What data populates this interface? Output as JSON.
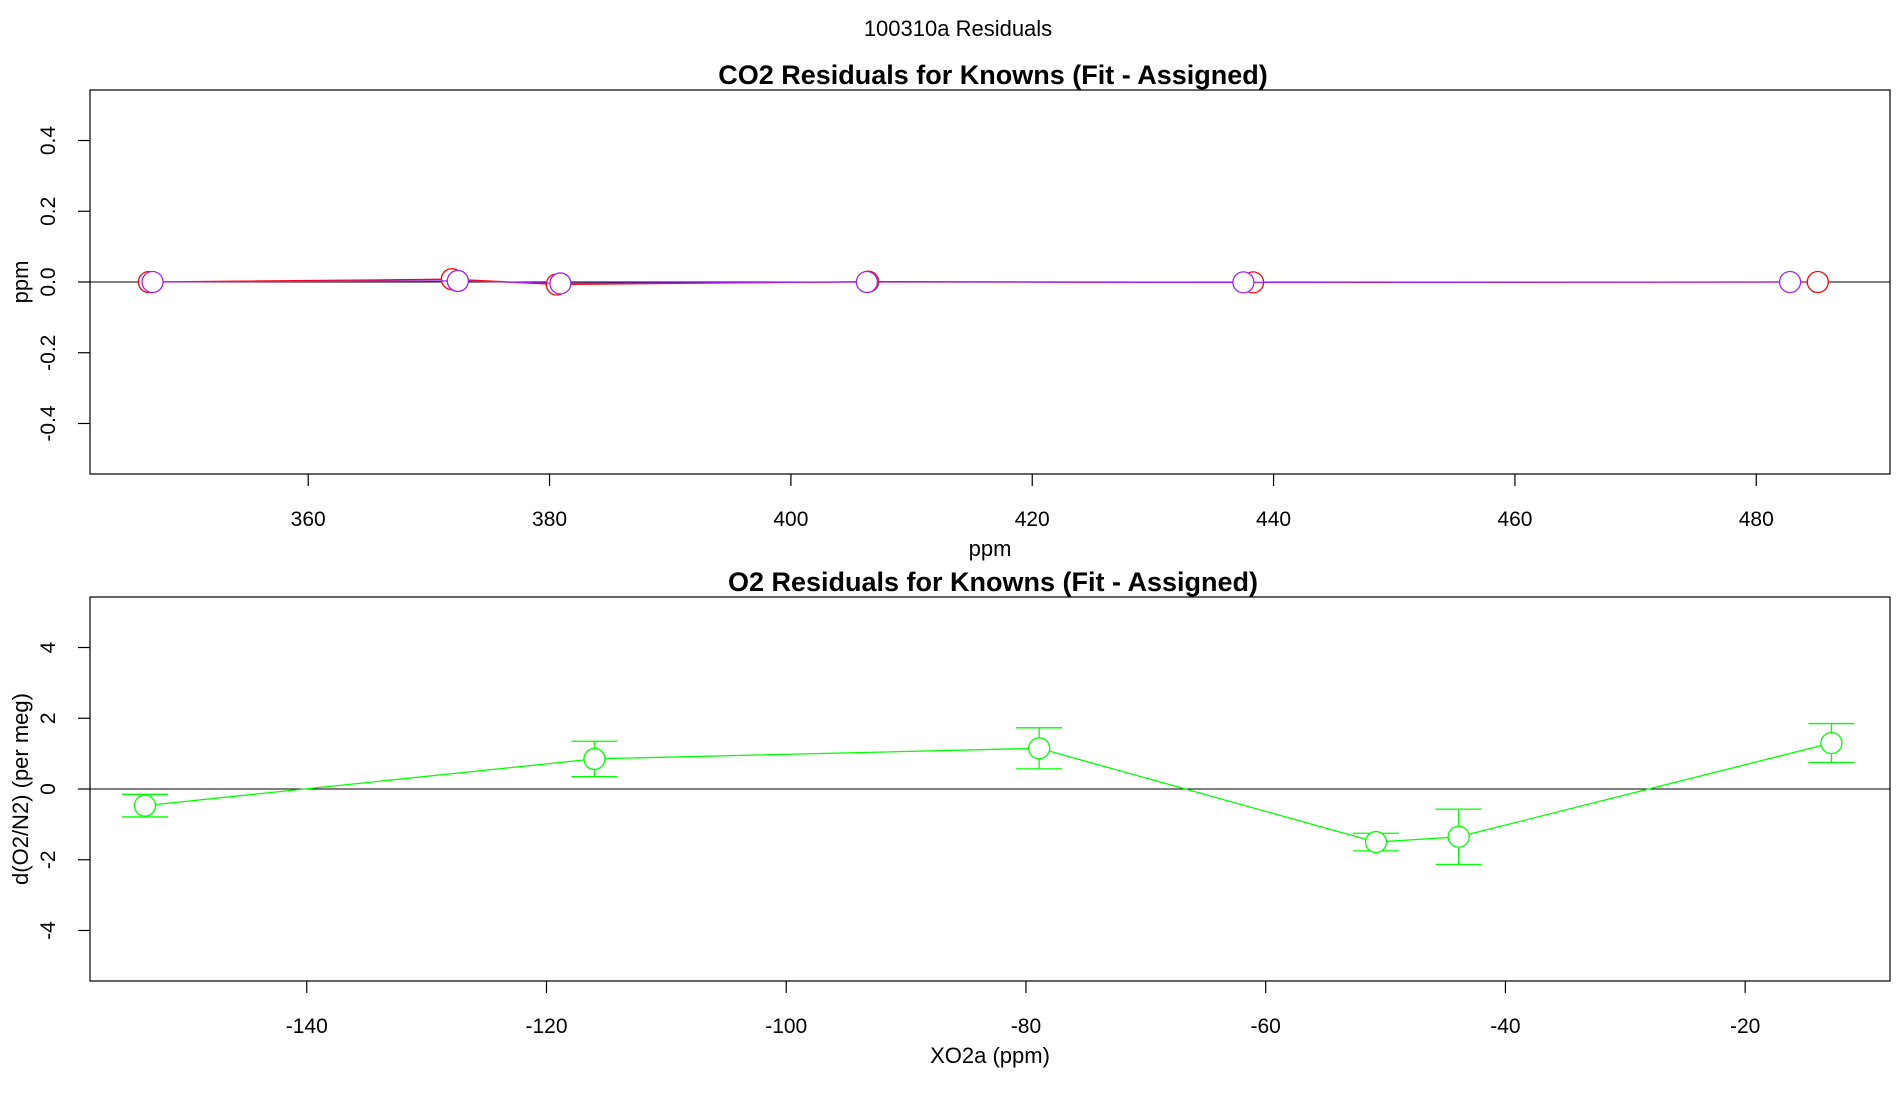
{
  "page_title": "100310a  Residuals",
  "colors": {
    "red": "#ff0000",
    "purple": "#a020f0",
    "green": "#00ff00",
    "axis": "#000000"
  },
  "chart_data": [
    {
      "type": "line",
      "title": "CO2 Residuals for Knowns (Fit - Assigned)",
      "xlabel": "ppm",
      "ylabel": "ppm",
      "xlim": [
        342,
        491
      ],
      "ylim": [
        -0.54,
        0.54
      ],
      "xticks": [
        360,
        380,
        400,
        420,
        440,
        460,
        480
      ],
      "yticks": [
        -0.4,
        -0.2,
        0.0,
        0.2,
        0.4
      ],
      "xtick_labels": [
        "360",
        "380",
        "400",
        "420",
        "440",
        "460",
        "480"
      ],
      "ytick_labels": [
        "-0.4",
        "-0.2",
        "0.0",
        "0.2",
        "0.4"
      ],
      "hline": 0,
      "series": [
        {
          "color": "#ff0000",
          "x": [
            346.8,
            371.9,
            380.6,
            406.4,
            438.3,
            485.1
          ],
          "y": [
            0.0,
            0.008,
            -0.007,
            0.001,
            -0.001,
            0.0
          ]
        },
        {
          "color": "#a020f0",
          "x": [
            347.1,
            372.4,
            380.9,
            406.3,
            437.5,
            482.8
          ],
          "y": [
            0.0,
            0.003,
            -0.004,
            0.0,
            -0.001,
            0.0
          ]
        }
      ]
    },
    {
      "type": "line",
      "title": "O2 Residuals for Knowns (Fit - Assigned)",
      "xlabel": "XO2a (ppm)",
      "ylabel": "d(O2/N2) (per meg)",
      "xlim": [
        -158,
        -8
      ],
      "ylim": [
        -5.4,
        5.4
      ],
      "xticks": [
        -140,
        -120,
        -100,
        -80,
        -60,
        -40,
        -20
      ],
      "yticks": [
        -4,
        -2,
        0,
        2,
        4
      ],
      "xtick_labels": [
        "-140",
        "-120",
        "-100",
        "-80",
        "-60",
        "-40",
        "-20"
      ],
      "ytick_labels": [
        "-4",
        "-2",
        "0",
        "2",
        "4"
      ],
      "hline": 0,
      "series": [
        {
          "color": "#00ff00",
          "x": [
            -153.5,
            -116.0,
            -78.9,
            -50.8,
            -43.9,
            -12.8
          ],
          "y": [
            -0.47,
            0.85,
            1.15,
            -1.5,
            -1.35,
            1.3
          ],
          "err": [
            0.32,
            0.5,
            0.58,
            0.25,
            0.78,
            0.55
          ]
        }
      ]
    }
  ]
}
